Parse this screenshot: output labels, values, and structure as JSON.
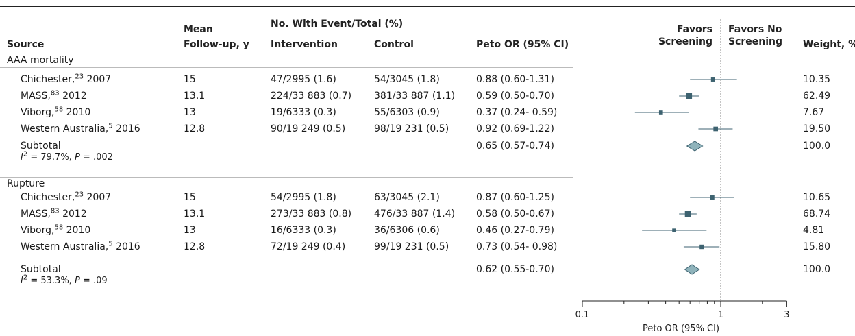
{
  "headers": {
    "source": "Source",
    "followup_l1": "Mean",
    "followup_l2": "Follow-up, y",
    "events": "No. With Event/Total (%)",
    "intervention": "Intervention",
    "control": "Control",
    "or": "Peto OR (95% CI)",
    "favors_left_l1": "Favors",
    "favors_left_l2": "Screening",
    "favors_right_l1": "Favors No",
    "favors_right_l2": "Screening",
    "weight": "Weight, %"
  },
  "groups": [
    {
      "name": "AAA mortality",
      "rows": [
        {
          "source": "Chichester,",
          "ref": "23",
          "year": " 2007",
          "followup": "15",
          "intervention": "47/2995 (1.6)",
          "control": "54/3045 (1.8)",
          "or_text": "0.88 (0.60-1.31)",
          "weight": "10.35"
        },
        {
          "source": "MASS,",
          "ref": "83",
          "year": " 2012",
          "followup": "13.1",
          "intervention": "224/33 883 (0.7)",
          "control": "381/33 887 (1.1)",
          "or_text": "0.59 (0.50-0.70)",
          "weight": "62.49"
        },
        {
          "source": "Viborg,",
          "ref": "58",
          "year": " 2010",
          "followup": "13",
          "intervention": "19/6333 (0.3)",
          "control": "55/6303 (0.9)",
          "or_text": "0.37 (0.24- 0.59)",
          "weight": "7.67"
        },
        {
          "source": "Western Australia,",
          "ref": "5",
          "year": " 2016",
          "followup": "12.8",
          "intervention": "90/19 249 (0.5)",
          "control": "98/19 231 (0.5)",
          "or_text": "0.92 (0.69-1.22)",
          "weight": "19.50"
        }
      ],
      "subtotal": {
        "label": "Subtotal",
        "i2_prefix": "I",
        "i2_rest": " = 79.7%, ",
        "p_label": "P",
        "p_rest": " = .002",
        "or_text": "0.65 (0.57-0.74)",
        "weight": "100.0"
      }
    },
    {
      "name": "Rupture",
      "rows": [
        {
          "source": "Chichester,",
          "ref": "23",
          "year": " 2007",
          "followup": "15",
          "intervention": "54/2995 (1.8)",
          "control": "63/3045 (2.1)",
          "or_text": "0.87 (0.60-1.25)",
          "weight": "10.65"
        },
        {
          "source": "MASS,",
          "ref": "83",
          "year": " 2012",
          "followup": "13.1",
          "intervention": "273/33 883 (0.8)",
          "control": "476/33 887 (1.4)",
          "or_text": "0.58 (0.50-0.67)",
          "weight": "68.74"
        },
        {
          "source": "Viborg,",
          "ref": "58",
          "year": " 2010",
          "followup": "13",
          "intervention": "16/6333 (0.3)",
          "control": "36/6306 (0.6)",
          "or_text": "0.46 (0.27-0.79)",
          "weight": "4.81"
        },
        {
          "source": "Western Australia,",
          "ref": "5",
          "year": " 2016",
          "followup": "12.8",
          "intervention": "72/19 249 (0.4)",
          "control": "99/19 231 (0.5)",
          "or_text": "0.73 (0.54- 0.98)",
          "weight": "15.80"
        }
      ],
      "subtotal": {
        "label": "Subtotal",
        "i2_prefix": "I",
        "i2_rest": " = 53.3%, ",
        "p_label": "P",
        "p_rest": " = .09",
        "or_text": "0.62 (0.55-0.70)",
        "weight": "100.0"
      }
    }
  ],
  "chart_data": {
    "type": "forest",
    "scale": "log",
    "xlabel": "Peto OR (95% CI)",
    "xlim": [
      0.1,
      3
    ],
    "xticks": [
      0.1,
      1,
      3
    ],
    "xtick_labels": [
      "0.1",
      "1",
      "3"
    ],
    "reference_line": 1,
    "colors": {
      "marker": "#3d6270",
      "diamond_fill": "#8fb3bb",
      "diamond_stroke": "#3d6270",
      "line": "#222222",
      "ref_line": "#888888"
    },
    "series": [
      {
        "name": "AAA mortality",
        "studies": [
          {
            "label": "Chichester 2007",
            "or": 0.88,
            "lo": 0.6,
            "hi": 1.31,
            "weight": 10.35
          },
          {
            "label": "MASS 2012",
            "or": 0.59,
            "lo": 0.5,
            "hi": 0.7,
            "weight": 62.49
          },
          {
            "label": "Viborg 2010",
            "or": 0.37,
            "lo": 0.24,
            "hi": 0.59,
            "weight": 7.67
          },
          {
            "label": "Western Australia 2016",
            "or": 0.92,
            "lo": 0.69,
            "hi": 1.22,
            "weight": 19.5
          }
        ],
        "subtotal": {
          "or": 0.65,
          "lo": 0.57,
          "hi": 0.74
        }
      },
      {
        "name": "Rupture",
        "studies": [
          {
            "label": "Chichester 2007",
            "or": 0.87,
            "lo": 0.6,
            "hi": 1.25,
            "weight": 10.65
          },
          {
            "label": "MASS 2012",
            "or": 0.58,
            "lo": 0.5,
            "hi": 0.67,
            "weight": 68.74
          },
          {
            "label": "Viborg 2010",
            "or": 0.46,
            "lo": 0.27,
            "hi": 0.79,
            "weight": 4.81
          },
          {
            "label": "Western Australia 2016",
            "or": 0.73,
            "lo": 0.54,
            "hi": 0.98,
            "weight": 15.8
          }
        ],
        "subtotal": {
          "or": 0.62,
          "lo": 0.55,
          "hi": 0.7
        }
      }
    ]
  }
}
